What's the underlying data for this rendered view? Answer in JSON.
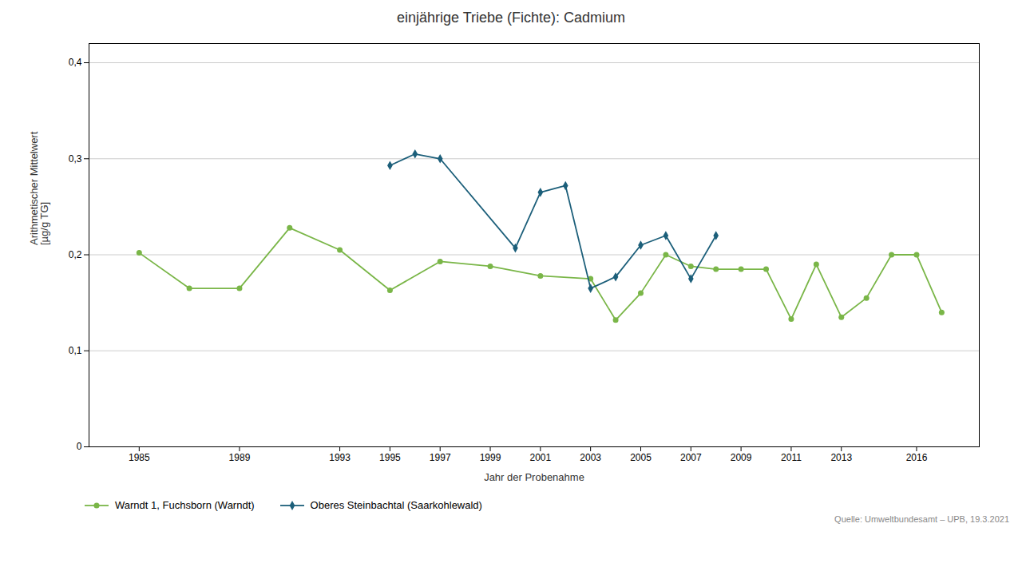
{
  "chart_data": {
    "type": "line",
    "title": "einjährige Triebe (Fichte): Cadmium",
    "xlabel": "Jahr der Probenahme",
    "ylabel": "Arithmetischer Mittelwert\n[µg/g TG]",
    "annotations": [
      "Quelle: Umweltbundesamt – UPB, 19.3.2021"
    ],
    "series": [
      {
        "name": "Warndt 1, Fuchsborn (Warndt)",
        "color": "#7ab648",
        "marker": "circle",
        "x": [
          1985,
          1987,
          1989,
          1991,
          1993,
          1995,
          1997,
          1999,
          2001,
          2003,
          2004,
          2005,
          2006,
          2007,
          2008,
          2009,
          2010,
          2011,
          2012,
          2013,
          2014,
          2015,
          2016,
          2017
        ],
        "values": [
          0.202,
          0.165,
          0.165,
          0.228,
          0.205,
          0.163,
          0.193,
          0.188,
          0.178,
          0.175,
          0.132,
          0.16,
          0.2,
          0.188,
          0.185,
          0.185,
          0.185,
          0.133,
          0.19,
          0.135,
          0.155,
          0.2,
          0.2,
          0.14
        ]
      },
      {
        "name": "Oberes Steinbachtal (Saarkohlewald)",
        "color": "#1c5f7a",
        "marker": "diamond",
        "x": [
          1995,
          1996,
          1997,
          2000,
          2001,
          2002,
          2003,
          2004,
          2005,
          2006,
          2007,
          2008
        ],
        "values": [
          0.293,
          0.305,
          0.3,
          0.207,
          0.265,
          0.272,
          0.165,
          0.177,
          0.21,
          0.22,
          0.175,
          0.22
        ]
      }
    ],
    "xlim": [
      1983.0,
      2018.5
    ],
    "xticks": [
      1985,
      1989,
      1993,
      1995,
      1997,
      1999,
      2001,
      2003,
      2005,
      2007,
      2009,
      2011,
      2013,
      2016
    ],
    "ylim": [
      0,
      0.42
    ],
    "yticks": [
      0,
      {
        "value": 0.1,
        "label": "0,1"
      },
      {
        "value": 0.2,
        "label": "0,2"
      },
      {
        "value": 0.3,
        "label": "0,3"
      },
      {
        "value": 0.4,
        "label": "0,4"
      }
    ],
    "grid": "y",
    "legend": "lower left"
  }
}
